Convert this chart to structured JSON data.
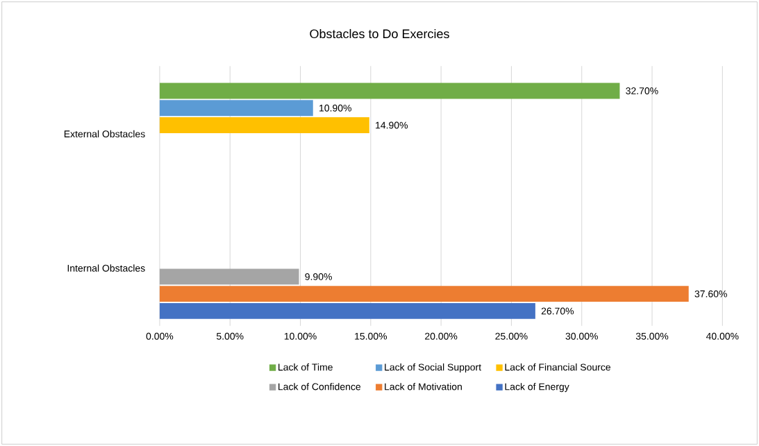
{
  "chart_data": {
    "type": "bar",
    "orientation": "horizontal",
    "title": "Obstacles to Do Exercies",
    "categories": [
      "External Obstacles",
      "Internal Obstacles"
    ],
    "series": [
      {
        "name": "Lack of Time",
        "color": "#70ad47",
        "values": [
          32.7,
          null
        ],
        "value_labels": [
          "32.70%",
          null
        ]
      },
      {
        "name": "Lack of Social Support",
        "color": "#5b9bd5",
        "values": [
          10.9,
          null
        ],
        "value_labels": [
          "10.90%",
          null
        ]
      },
      {
        "name": "Lack of Financial Source",
        "color": "#ffc000",
        "values": [
          14.9,
          null
        ],
        "value_labels": [
          "14.90%",
          null
        ]
      },
      {
        "name": "Lack of Confidence",
        "color": "#a5a5a5",
        "values": [
          null,
          9.9
        ],
        "value_labels": [
          null,
          "9.90%"
        ]
      },
      {
        "name": "Lack of Motivation",
        "color": "#ed7d31",
        "values": [
          null,
          37.6
        ],
        "value_labels": [
          null,
          "37.60%"
        ]
      },
      {
        "name": "Lack of Energy",
        "color": "#4472c4",
        "values": [
          null,
          26.7
        ],
        "value_labels": [
          null,
          "26.70%"
        ]
      }
    ],
    "xlim": [
      0,
      40
    ],
    "xticks": [
      {
        "value": 0,
        "label": "0.00%"
      },
      {
        "value": 5,
        "label": "5.00%"
      },
      {
        "value": 10,
        "label": "10.00%"
      },
      {
        "value": 15,
        "label": "15.00%"
      },
      {
        "value": 20,
        "label": "20.00%"
      },
      {
        "value": 25,
        "label": "25.00%"
      },
      {
        "value": 30,
        "label": "30.00%"
      },
      {
        "value": 35,
        "label": "35.00%"
      },
      {
        "value": 40,
        "label": "40.00%"
      }
    ],
    "grid": "x",
    "legend": "bottom"
  }
}
